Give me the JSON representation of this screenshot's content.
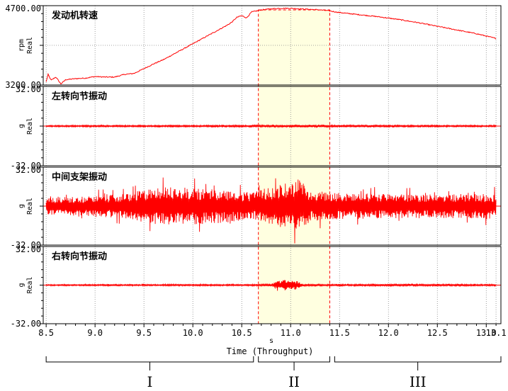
{
  "chart_data": {
    "type": "line",
    "xlabel": "Time (Throughput)",
    "xunit": "s",
    "xlim": [
      8.47,
      13.15
    ],
    "xticks": [
      8.5,
      9.0,
      9.5,
      10.0,
      10.5,
      11.0,
      11.5,
      12.0,
      12.5,
      13.0
    ],
    "xtick_labels": [
      "8.5",
      "9.0",
      "9.5",
      "10.0",
      "10.5",
      "11.0",
      "11.5",
      "12.0",
      "12.5",
      "13.0"
    ],
    "last_tick_label": "13.1",
    "series_color": "#ff0000",
    "highlight": {
      "x_start": 10.67,
      "x_end": 11.4,
      "fill": "#ffffe0",
      "border": "#ff0000"
    },
    "panels": [
      {
        "title": "发动机转速",
        "unit": "rpm",
        "quantity": "Real",
        "ylim": [
          3200,
          4700
        ],
        "ytick_labels": [
          "4700.00",
          "3200.00"
        ],
        "mid_label": "Real",
        "kind": "rpm",
        "points": [
          [
            8.5,
            3260
          ],
          [
            8.52,
            3400
          ],
          [
            8.55,
            3290
          ],
          [
            8.6,
            3350
          ],
          [
            8.65,
            3220
          ],
          [
            8.7,
            3300
          ],
          [
            8.8,
            3320
          ],
          [
            8.9,
            3330
          ],
          [
            9.0,
            3360
          ],
          [
            9.1,
            3350
          ],
          [
            9.2,
            3350
          ],
          [
            9.3,
            3400
          ],
          [
            9.4,
            3420
          ],
          [
            9.5,
            3510
          ],
          [
            9.6,
            3600
          ],
          [
            9.7,
            3680
          ],
          [
            9.8,
            3780
          ],
          [
            9.9,
            3880
          ],
          [
            10.0,
            3980
          ],
          [
            10.1,
            4080
          ],
          [
            10.2,
            4180
          ],
          [
            10.3,
            4280
          ],
          [
            10.35,
            4330
          ],
          [
            10.4,
            4390
          ],
          [
            10.45,
            4480
          ],
          [
            10.5,
            4510
          ],
          [
            10.55,
            4470
          ],
          [
            10.6,
            4580
          ],
          [
            10.65,
            4600
          ],
          [
            10.7,
            4620
          ],
          [
            10.8,
            4640
          ],
          [
            10.9,
            4650
          ],
          [
            11.0,
            4650
          ],
          [
            11.1,
            4640
          ],
          [
            11.2,
            4630
          ],
          [
            11.3,
            4620
          ],
          [
            11.4,
            4600
          ],
          [
            11.5,
            4570
          ],
          [
            11.7,
            4530
          ],
          [
            11.9,
            4490
          ],
          [
            12.1,
            4440
          ],
          [
            12.3,
            4380
          ],
          [
            12.5,
            4310
          ],
          [
            12.7,
            4240
          ],
          [
            12.9,
            4170
          ],
          [
            13.1,
            4080
          ]
        ]
      },
      {
        "title": "左转向节振动",
        "unit": "g",
        "quantity": "Real",
        "ylim": [
          -32,
          32
        ],
        "ytick_labels": [
          "32.00",
          "-32.00"
        ],
        "kind": "vibration",
        "envelope": [
          [
            8.5,
            0.6
          ],
          [
            9.0,
            0.6
          ],
          [
            10.0,
            0.6
          ],
          [
            10.6,
            0.7
          ],
          [
            11.0,
            0.9
          ],
          [
            11.5,
            0.7
          ],
          [
            12.5,
            0.6
          ],
          [
            13.1,
            0.6
          ]
        ]
      },
      {
        "title": "中间支架振动",
        "unit": "g",
        "quantity": "Real",
        "ylim": [
          -32,
          32
        ],
        "ytick_labels": [
          "32.00",
          "-32.00"
        ],
        "kind": "vibration",
        "envelope": [
          [
            8.5,
            7
          ],
          [
            8.9,
            8
          ],
          [
            9.3,
            10
          ],
          [
            9.6,
            15
          ],
          [
            9.8,
            16
          ],
          [
            10.0,
            15
          ],
          [
            10.3,
            14
          ],
          [
            10.6,
            11
          ],
          [
            10.8,
            16
          ],
          [
            11.0,
            20
          ],
          [
            11.1,
            22
          ],
          [
            11.2,
            12
          ],
          [
            11.5,
            11
          ],
          [
            12.0,
            10
          ],
          [
            12.5,
            10
          ],
          [
            13.1,
            10
          ]
        ]
      },
      {
        "title": "右转向节振动",
        "unit": "g",
        "quantity": "Real",
        "ylim": [
          -32,
          32
        ],
        "ytick_labels": [
          "32.00",
          "-32.00"
        ],
        "kind": "vibration",
        "envelope": [
          [
            8.5,
            0.5
          ],
          [
            10.5,
            0.6
          ],
          [
            10.8,
            0.8
          ],
          [
            10.85,
            3.5
          ],
          [
            10.95,
            4.5
          ],
          [
            11.05,
            4.0
          ],
          [
            11.12,
            1.0
          ],
          [
            11.2,
            0.7
          ],
          [
            11.5,
            0.6
          ],
          [
            12.0,
            0.8
          ],
          [
            13.1,
            0.6
          ]
        ]
      }
    ],
    "regions": [
      {
        "label": "I",
        "x_start": 8.5,
        "x_end": 10.62
      },
      {
        "label": "II",
        "x_start": 10.67,
        "x_end": 11.4
      },
      {
        "label": "III",
        "x_start": 11.45,
        "x_end": 13.15
      }
    ]
  }
}
